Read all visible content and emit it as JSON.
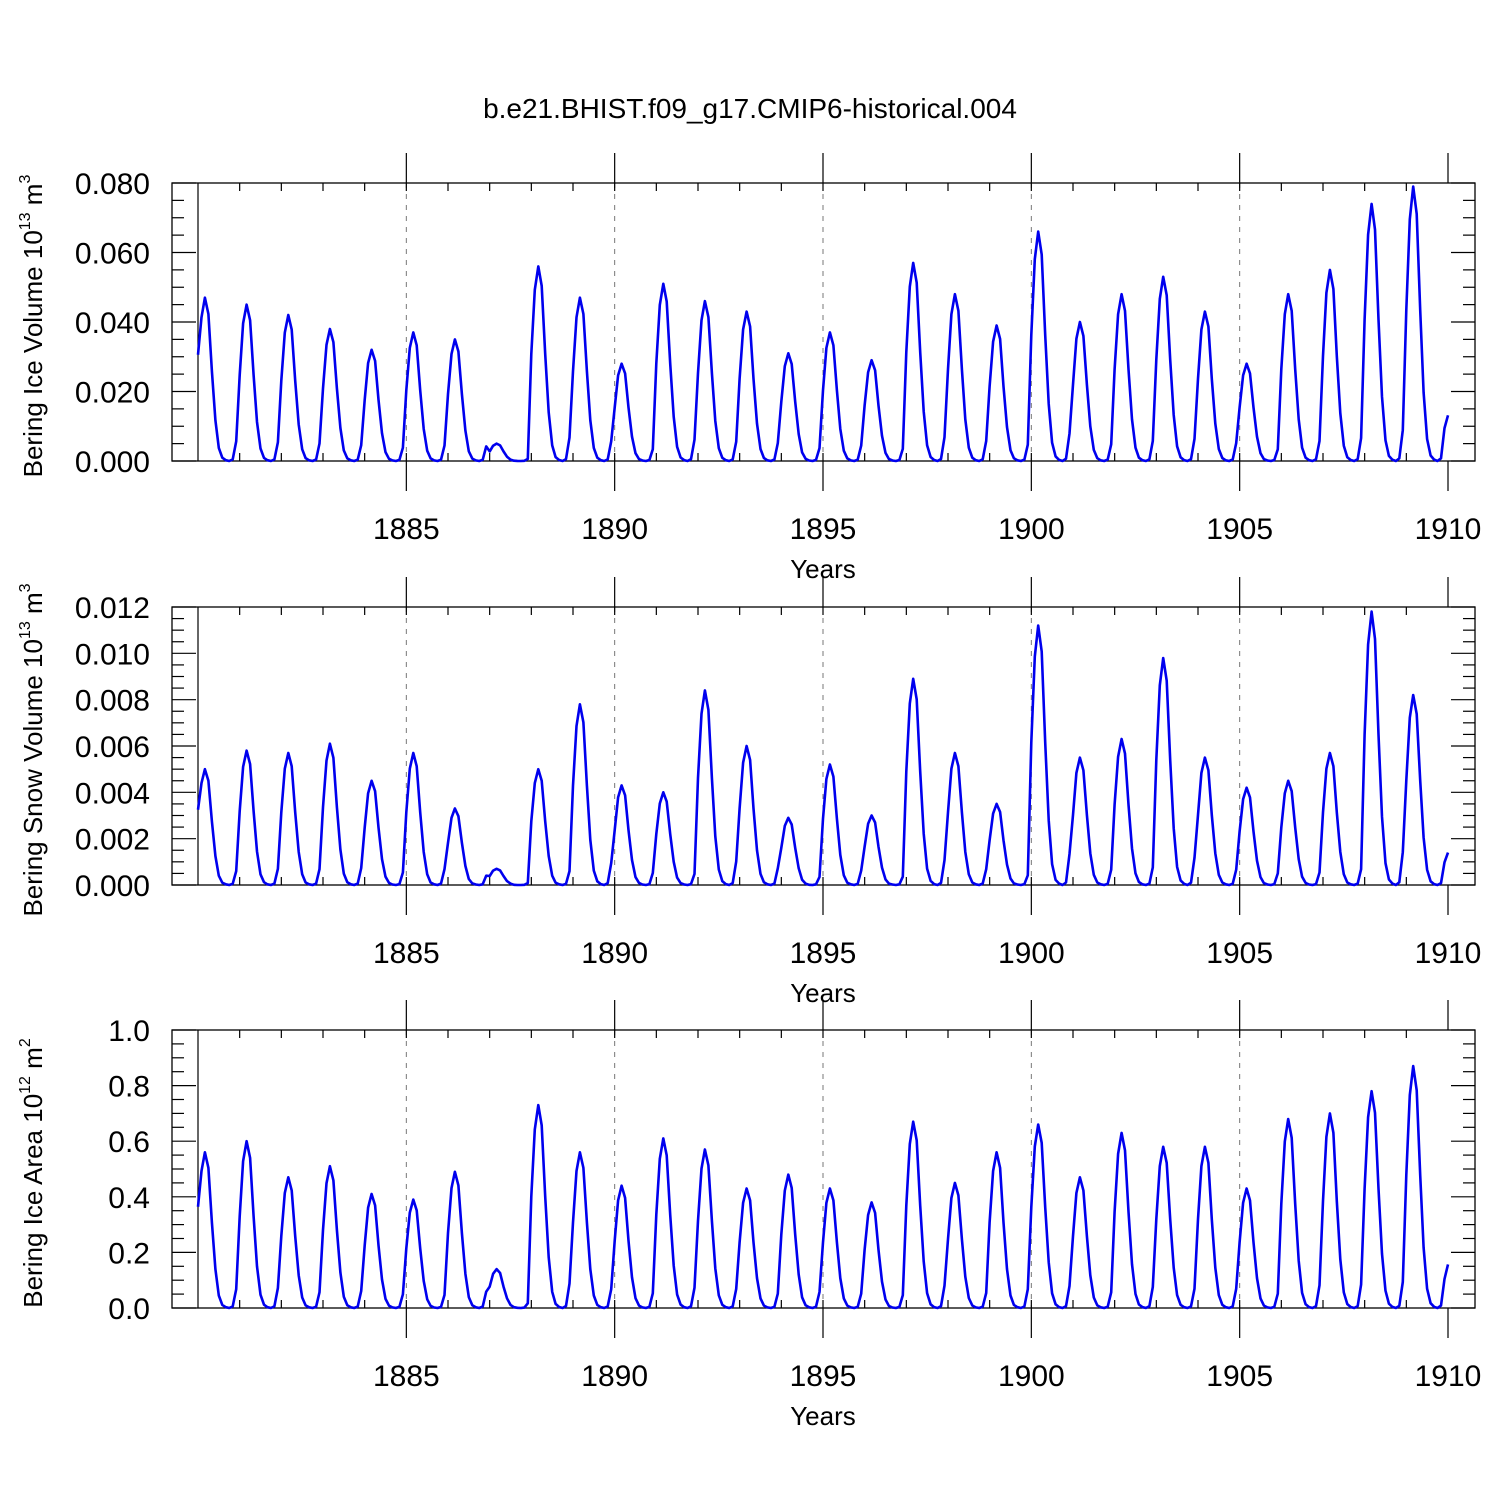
{
  "title": "b.e21.BHIST.f09_g17.CMIP6-historical.004",
  "colors": {
    "series": "#0000ee",
    "axes": "#000000",
    "grid": "#777777"
  },
  "chart_data": [
    {
      "type": "line",
      "ylabel_main": "Bering Ice Volume 10",
      "ylabel_exp": "13",
      "ylabel_unit": " m",
      "ylabel_unit_exp": "3",
      "xlabel": "Years",
      "xlim": [
        1880,
        1910
      ],
      "ylim": [
        0,
        0.08
      ],
      "xticks": [
        1885,
        1890,
        1895,
        1900,
        1905,
        1910
      ],
      "xtick_labels": [
        "1885",
        "1890",
        "1895",
        "1900",
        "1905",
        "1910"
      ],
      "yticks": [
        0,
        0.02,
        0.04,
        0.06,
        0.08
      ],
      "ytick_labels": [
        "0.000",
        "0.020",
        "0.040",
        "0.060",
        "0.080"
      ],
      "grid": "dashed vertical at major x ticks",
      "peaks": [
        0.047,
        0.045,
        0.042,
        0.038,
        0.032,
        0.037,
        0.035,
        0.005,
        0.056,
        0.047,
        0.028,
        0.051,
        0.046,
        0.043,
        0.031,
        0.037,
        0.029,
        0.057,
        0.048,
        0.039,
        0.066,
        0.04,
        0.048,
        0.053,
        0.043,
        0.028,
        0.048,
        0.055,
        0.074,
        0.079
      ],
      "series": [
        {
          "name": "Bering Ice Volume",
          "x_start": 1880.0,
          "x_step": 0.08333,
          "values": []
        }
      ]
    },
    {
      "type": "line",
      "ylabel_main": "Bering Snow Volume 10",
      "ylabel_exp": "13",
      "ylabel_unit": " m",
      "ylabel_unit_exp": "3",
      "xlabel": "Years",
      "xlim": [
        1880,
        1910
      ],
      "ylim": [
        0,
        0.012
      ],
      "xticks": [
        1885,
        1890,
        1895,
        1900,
        1905,
        1910
      ],
      "xtick_labels": [
        "1885",
        "1890",
        "1895",
        "1900",
        "1905",
        "1910"
      ],
      "yticks": [
        0,
        0.002,
        0.004,
        0.006,
        0.008,
        0.01,
        0.012
      ],
      "ytick_labels": [
        "0.000",
        "0.002",
        "0.004",
        "0.006",
        "0.008",
        "0.010",
        "0.012"
      ],
      "grid": "dashed vertical at major x ticks",
      "peaks": [
        0.005,
        0.0058,
        0.0057,
        0.0061,
        0.0045,
        0.0057,
        0.0033,
        0.0007,
        0.005,
        0.0078,
        0.0043,
        0.004,
        0.0084,
        0.006,
        0.0029,
        0.0052,
        0.003,
        0.0089,
        0.0057,
        0.0035,
        0.0112,
        0.0055,
        0.0063,
        0.0098,
        0.0055,
        0.0042,
        0.0045,
        0.0057,
        0.0118,
        0.0082
      ],
      "series": [
        {
          "name": "Bering Snow Volume",
          "x_start": 1880.0,
          "x_step": 0.08333,
          "values": []
        }
      ]
    },
    {
      "type": "line",
      "ylabel_main": "Bering Ice Area 10",
      "ylabel_exp": "12",
      "ylabel_unit": " m",
      "ylabel_unit_exp": "2",
      "xlabel": "Years",
      "xlim": [
        1880,
        1910
      ],
      "ylim": [
        0,
        1.0
      ],
      "xticks": [
        1885,
        1890,
        1895,
        1900,
        1905,
        1910
      ],
      "xtick_labels": [
        "1885",
        "1890",
        "1895",
        "1900",
        "1905",
        "1910"
      ],
      "yticks": [
        0,
        0.2,
        0.4,
        0.6,
        0.8,
        1.0
      ],
      "ytick_labels": [
        "0.0",
        "0.2",
        "0.4",
        "0.6",
        "0.8",
        "1.0"
      ],
      "grid": "dashed vertical at major x ticks",
      "peaks": [
        0.56,
        0.6,
        0.47,
        0.51,
        0.41,
        0.39,
        0.49,
        0.14,
        0.73,
        0.56,
        0.44,
        0.61,
        0.57,
        0.43,
        0.48,
        0.43,
        0.38,
        0.67,
        0.45,
        0.56,
        0.66,
        0.47,
        0.63,
        0.58,
        0.58,
        0.43,
        0.68,
        0.7,
        0.78,
        0.87
      ],
      "series": [
        {
          "name": "Bering Ice Area",
          "x_start": 1880.0,
          "x_step": 0.08333,
          "values": []
        }
      ]
    }
  ]
}
